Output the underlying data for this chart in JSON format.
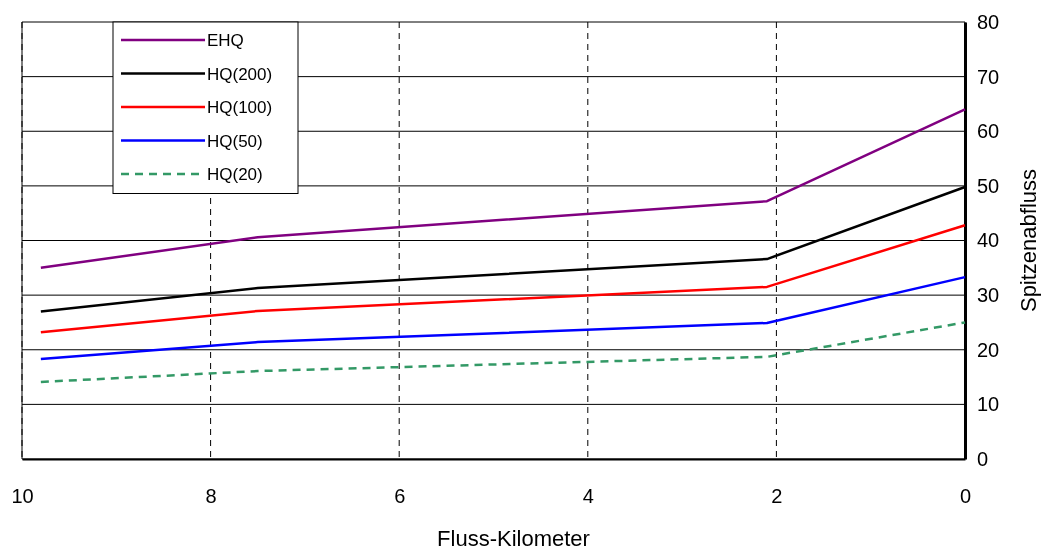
{
  "chart_data": {
    "type": "line",
    "xlabel": "Fluss-Kilometer",
    "ylabel": "Spitzenabfluss",
    "x": [
      9.8,
      7.5,
      2.1,
      0
    ],
    "series": [
      {
        "name": "EHQ",
        "color": "#800080",
        "values": [
          35,
          40.6,
          47.2,
          64
        ]
      },
      {
        "name": "HQ(200)",
        "color": "#000000",
        "values": [
          27,
          31.3,
          36.6,
          49.8
        ]
      },
      {
        "name": "HQ(100)",
        "color": "#ff0000",
        "values": [
          23.2,
          27.1,
          31.5,
          42.8
        ]
      },
      {
        "name": "HQ(50)",
        "color": "#0000ff",
        "values": [
          18.3,
          21.4,
          24.9,
          33.3
        ]
      },
      {
        "name": "HQ(20)",
        "color": "#339966",
        "values": [
          14.1,
          16.1,
          18.7,
          25
        ],
        "line_style": "dashed"
      }
    ],
    "xlim": [
      10,
      0
    ],
    "xticks": [
      10,
      8,
      6,
      4,
      2,
      0
    ],
    "ylim": [
      0,
      80
    ],
    "yticks": [
      0,
      10,
      20,
      30,
      40,
      50,
      60,
      70,
      80
    ],
    "grid": true,
    "legend": "top left"
  }
}
